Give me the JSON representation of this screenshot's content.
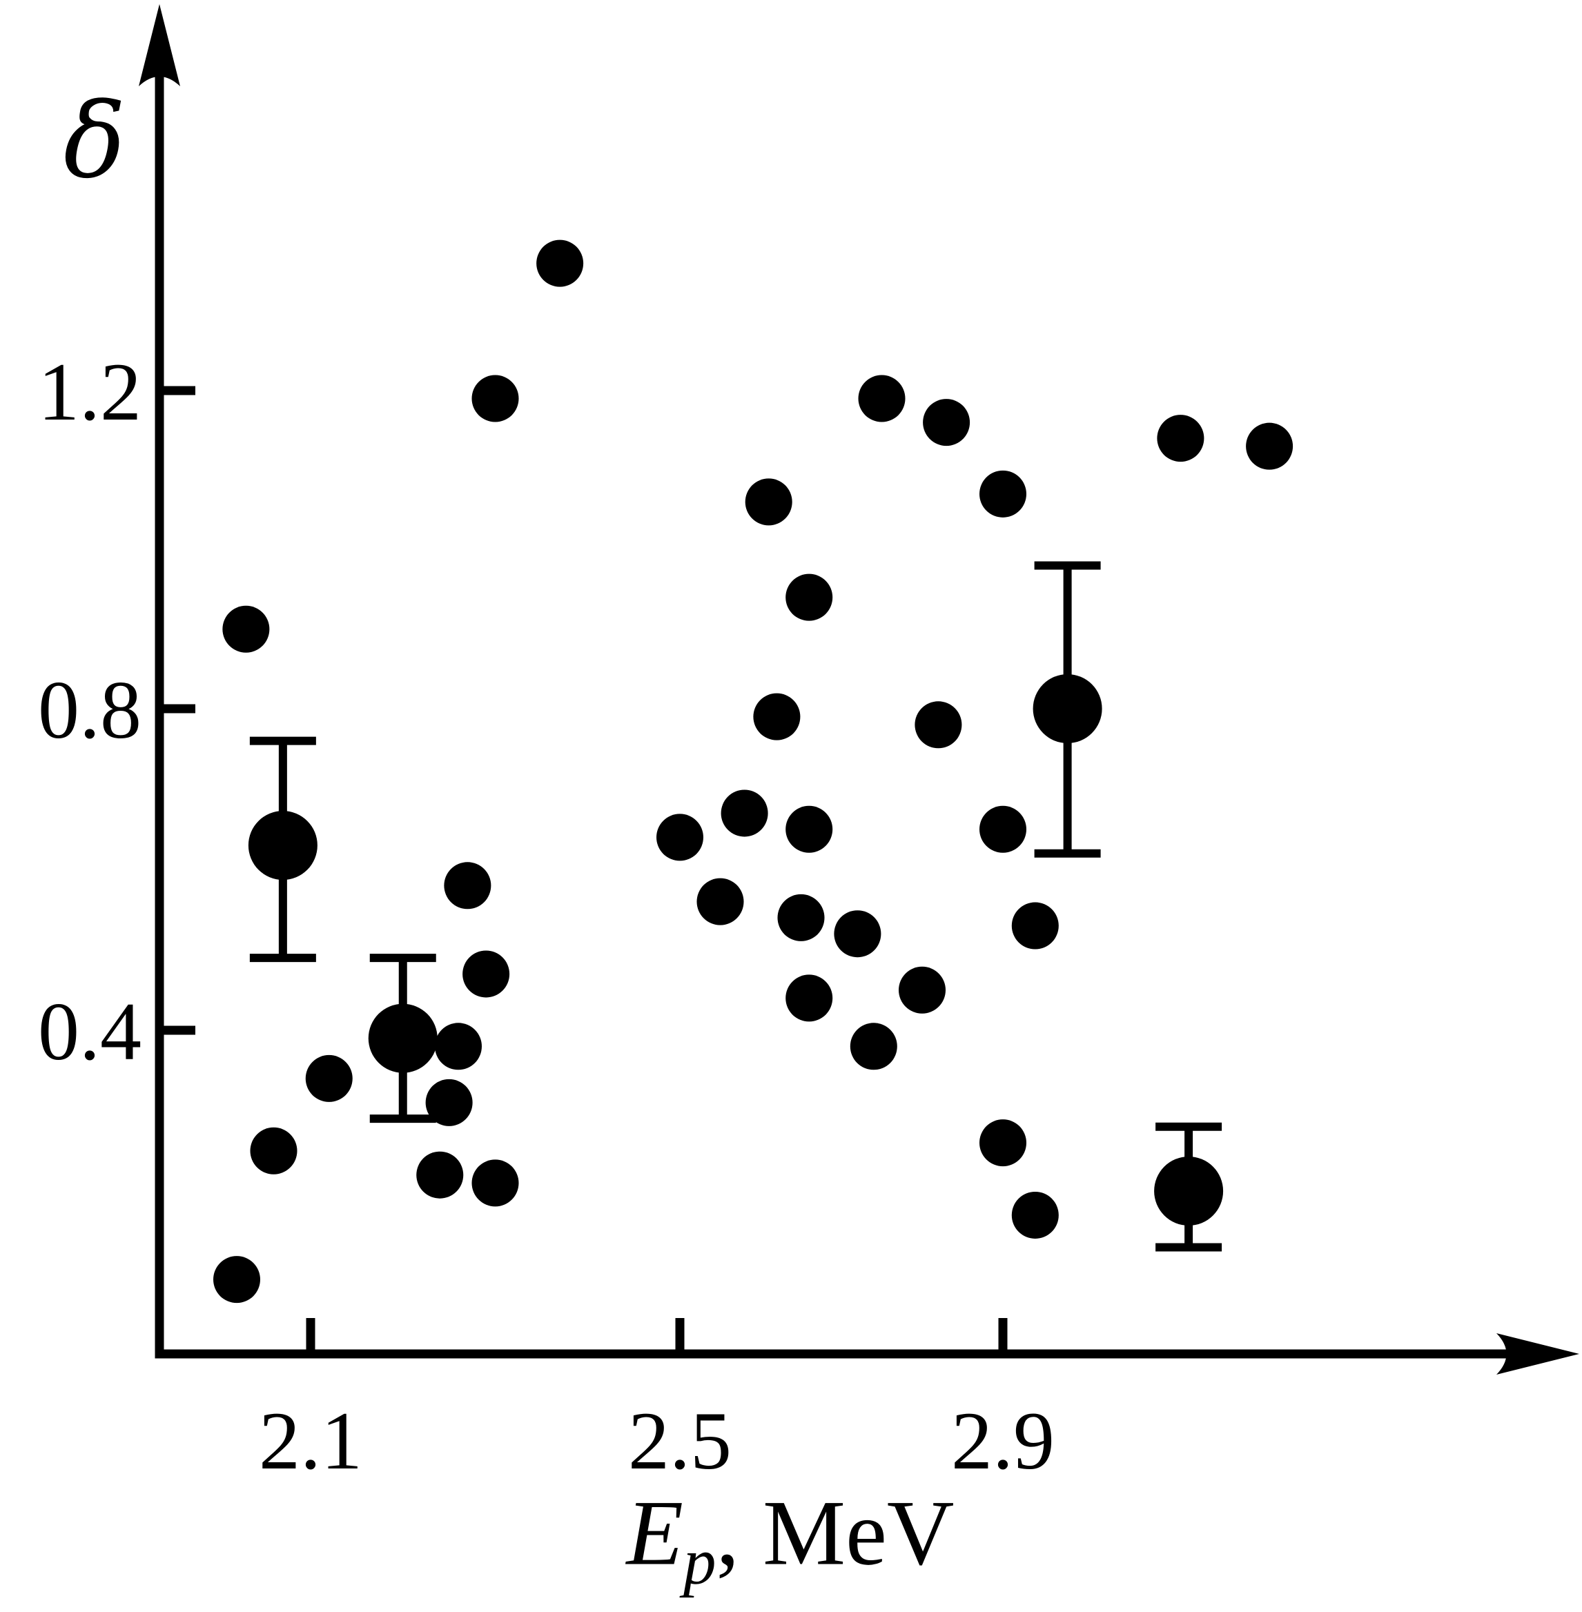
{
  "chart_data": {
    "type": "scatter",
    "title": "",
    "ylabel": "δ",
    "xlabel": {
      "var": "E",
      "sub": "p",
      "rest": ", MeV"
    },
    "x_ticks": [
      "2.1",
      "2.5",
      "2.9"
    ],
    "y_ticks": [
      "1.2",
      "0.8",
      "0.4"
    ],
    "xlim": [
      1.94,
      3.36
    ],
    "ylim": [
      0,
      1.69
    ],
    "grid": false,
    "legend": "none",
    "background": "#ffffff",
    "point_color": "#000000",
    "axis_color": "#000000",
    "points": [
      [
        2.02,
        0.09
      ],
      [
        2.03,
        0.9
      ],
      [
        2.06,
        0.25
      ],
      [
        2.12,
        0.34
      ],
      [
        2.24,
        0.22
      ],
      [
        2.25,
        0.31
      ],
      [
        2.26,
        0.38
      ],
      [
        2.27,
        0.58
      ],
      [
        2.29,
        0.47
      ],
      [
        2.3,
        0.21
      ],
      [
        2.3,
        1.19
      ],
      [
        2.37,
        1.36
      ],
      [
        2.5,
        0.64
      ],
      [
        2.55,
        0.56
      ],
      [
        2.58,
        0.67
      ],
      [
        2.61,
        1.06
      ],
      [
        2.62,
        0.79
      ],
      [
        2.65,
        0.54
      ],
      [
        2.66,
        0.44
      ],
      [
        2.66,
        0.65
      ],
      [
        2.66,
        0.94
      ],
      [
        2.72,
        0.52
      ],
      [
        2.74,
        0.38
      ],
      [
        2.75,
        1.19
      ],
      [
        2.8,
        0.45
      ],
      [
        2.82,
        0.78
      ],
      [
        2.83,
        1.16
      ],
      [
        2.9,
        0.26
      ],
      [
        2.9,
        0.65
      ],
      [
        2.9,
        1.07
      ],
      [
        2.94,
        0.17
      ],
      [
        2.94,
        0.53
      ],
      [
        3.12,
        1.14
      ],
      [
        3.23,
        1.13
      ]
    ],
    "points_with_errors": [
      {
        "x": 2.07,
        "y": 0.63,
        "err_up": 0.13,
        "err_down": 0.14
      },
      {
        "x": 2.2,
        "y": 0.39,
        "err_up": 0.1,
        "err_down": 0.1
      },
      {
        "x": 2.98,
        "y": 0.8,
        "err_up": 0.18,
        "err_down": 0.18
      },
      {
        "x": 3.13,
        "y": 0.2,
        "err_up": 0.08,
        "err_down": 0.07
      }
    ]
  }
}
